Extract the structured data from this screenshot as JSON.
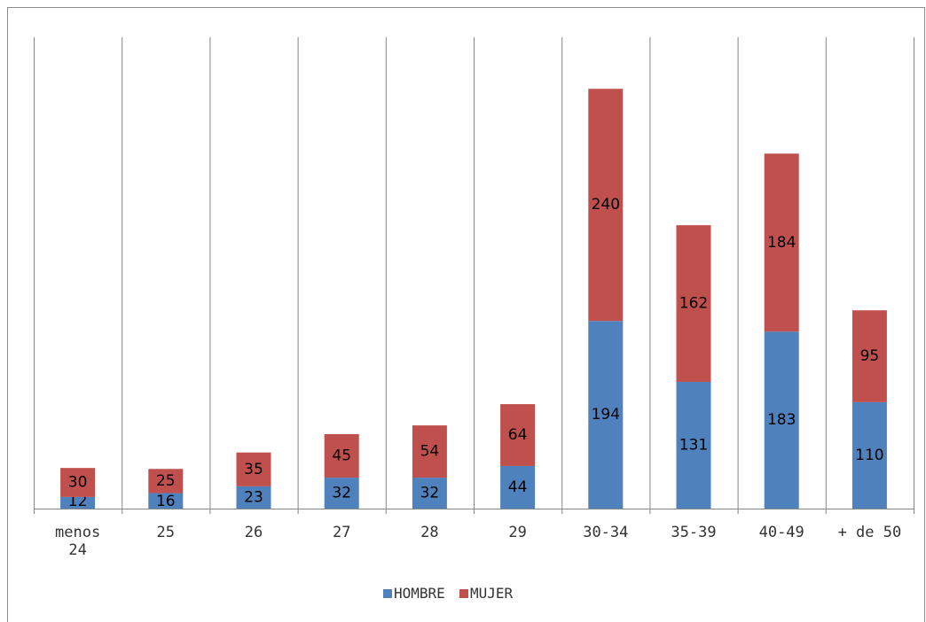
{
  "chart_data": {
    "type": "bar",
    "stacked": true,
    "categories": [
      "menos 24",
      "25",
      "26",
      "27",
      "28",
      "29",
      "30-34",
      "35-39",
      "40-49",
      "+ de 50"
    ],
    "series": [
      {
        "name": "HOMBRE",
        "color": "#4f81bd",
        "values": [
          12,
          16,
          23,
          32,
          32,
          44,
          194,
          131,
          183,
          110
        ]
      },
      {
        "name": "MUJER",
        "color": "#c0504d",
        "values": [
          30,
          25,
          35,
          45,
          54,
          64,
          240,
          162,
          184,
          95
        ]
      }
    ],
    "title": "",
    "xlabel": "",
    "ylabel": "",
    "ylim": [
      0,
      480
    ],
    "grid": false,
    "legend_position": "bottom",
    "data_labels": true
  }
}
